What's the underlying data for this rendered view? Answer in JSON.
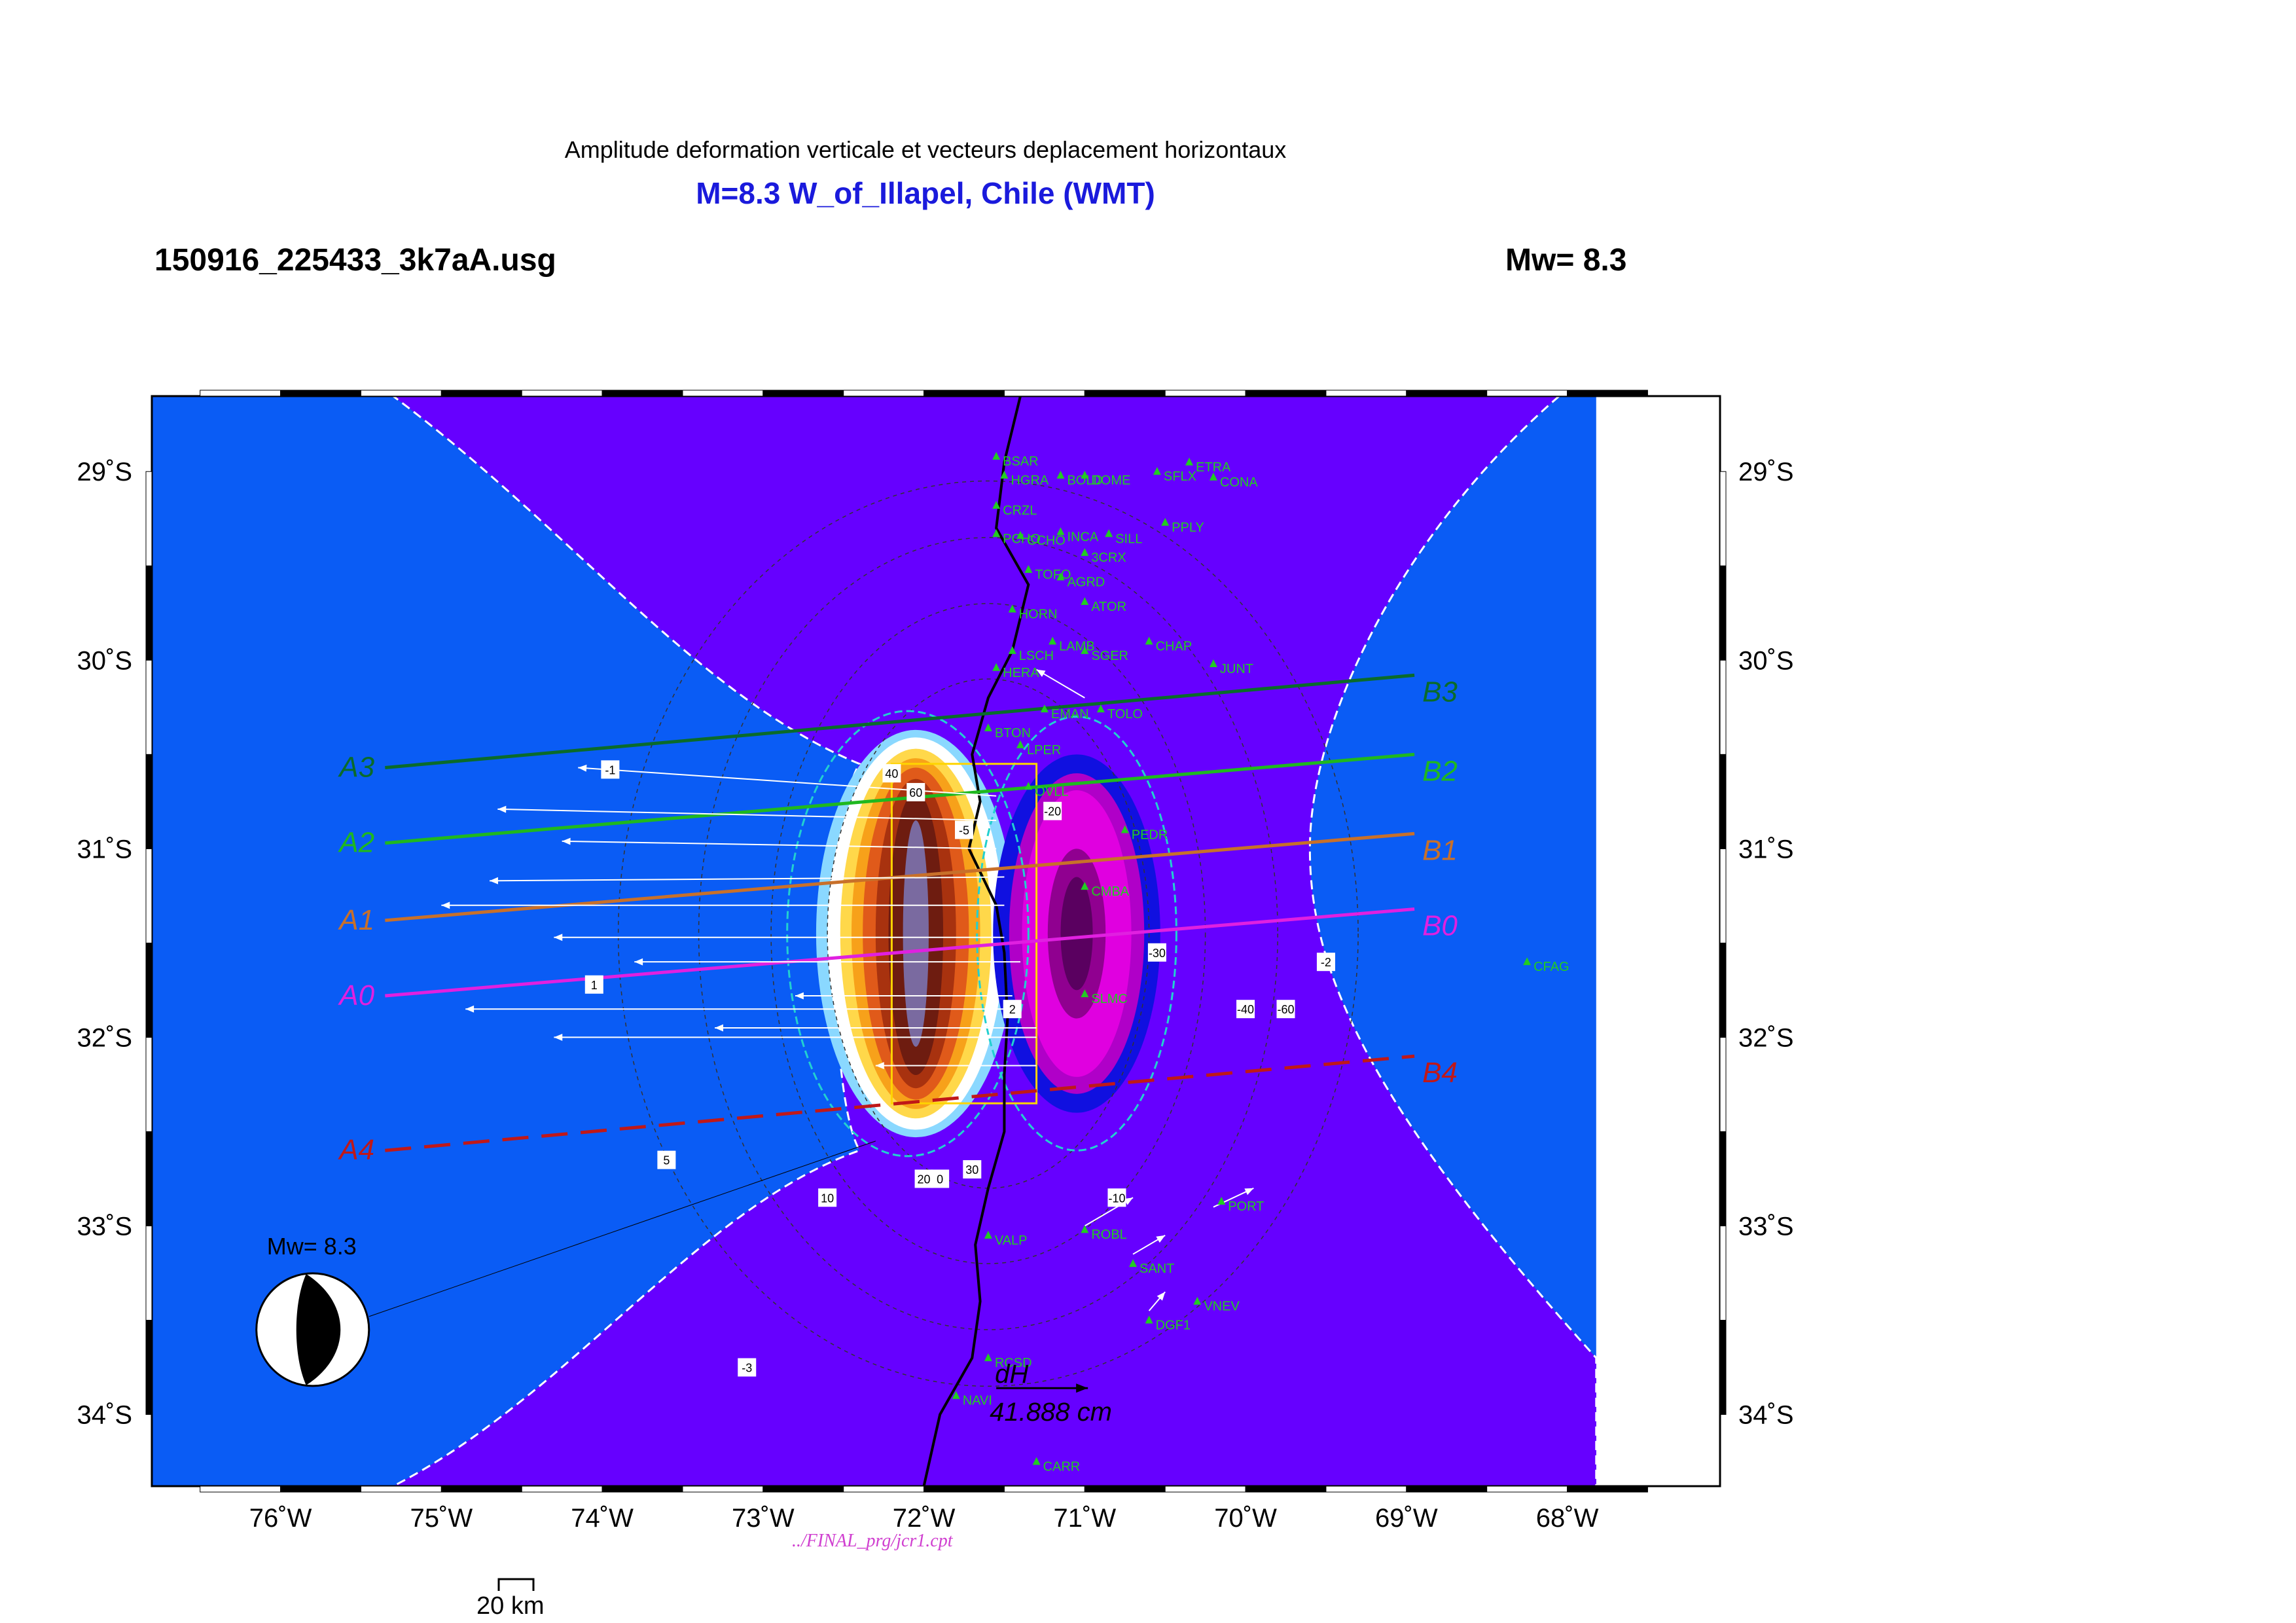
{
  "header": {
    "subtitle": "Amplitude deformation verticale et vecteurs deplacement horizontaux",
    "title": "M=8.3 W_of_Illapel, Chile (WMT)",
    "filename": "150916_225433_3k7aA.usg",
    "magnitude": "Mw= 8.3"
  },
  "axes": {
    "lon_ticks": [
      "76˚W",
      "75˚W",
      "74˚W",
      "73˚W",
      "72˚W",
      "71˚W",
      "70˚W",
      "69˚W",
      "68˚W"
    ],
    "lat_ticks": [
      "29˚S",
      "30˚S",
      "31˚S",
      "32˚S",
      "33˚S",
      "34˚S"
    ],
    "lon_range": [
      -76.8,
      -67.05
    ],
    "lat_range": [
      -34.38,
      -28.6
    ]
  },
  "colors": {
    "ocean_blue": "#0a5cf5",
    "violet": "#6600ff",
    "white": "#ffffff",
    "coast": "#000000",
    "station": "#22cc22",
    "title_blue": "#1a1adc"
  },
  "profiles": [
    {
      "start": "A3",
      "end": "B3",
      "color": "#0a6b2a",
      "from": [
        -75.35,
        -30.57
      ],
      "to": [
        -68.95,
        -30.08
      ]
    },
    {
      "start": "A2",
      "end": "B2",
      "color": "#1fb81f",
      "from": [
        -75.35,
        -30.97
      ],
      "to": [
        -68.95,
        -30.5
      ]
    },
    {
      "start": "A1",
      "end": "B1",
      "color": "#c8702a",
      "from": [
        -75.35,
        -31.38
      ],
      "to": [
        -68.95,
        -30.92
      ]
    },
    {
      "start": "A0",
      "end": "B0",
      "color": "#e020e0",
      "from": [
        -75.35,
        -31.78
      ],
      "to": [
        -68.95,
        -31.32
      ]
    },
    {
      "start": "A4",
      "end": "B4",
      "color": "#c01818",
      "from": [
        -75.35,
        -32.6
      ],
      "to": [
        -68.95,
        -32.1
      ],
      "dashed": true
    }
  ],
  "stations": [
    {
      "name": "BSAR",
      "lon": -71.55,
      "lat": -28.92
    },
    {
      "name": "HGRA",
      "lon": -71.5,
      "lat": -29.02
    },
    {
      "name": "BOLD",
      "lon": -71.15,
      "lat": -29.02
    },
    {
      "name": "DOME",
      "lon": -71.0,
      "lat": -29.02
    },
    {
      "name": "ETRA",
      "lon": -70.35,
      "lat": -28.95
    },
    {
      "name": "SFLX",
      "lon": -70.55,
      "lat": -29.0
    },
    {
      "name": "CONA",
      "lon": -70.2,
      "lat": -29.03
    },
    {
      "name": "CRZL",
      "lon": -71.55,
      "lat": -29.18
    },
    {
      "name": "PCHO",
      "lon": -71.55,
      "lat": -29.33
    },
    {
      "name": "CCHO",
      "lon": -71.4,
      "lat": -29.34
    },
    {
      "name": "INCA",
      "lon": -71.15,
      "lat": -29.32
    },
    {
      "name": "SILL",
      "lon": -70.85,
      "lat": -29.33
    },
    {
      "name": "PPLY",
      "lon": -70.5,
      "lat": -29.27
    },
    {
      "name": "3CRX",
      "lon": -71.0,
      "lat": -29.43
    },
    {
      "name": "TOFO",
      "lon": -71.35,
      "lat": -29.52
    },
    {
      "name": "AGRD",
      "lon": -71.15,
      "lat": -29.56
    },
    {
      "name": "ATOR",
      "lon": -71.0,
      "lat": -29.69
    },
    {
      "name": "HORN",
      "lon": -71.45,
      "lat": -29.73
    },
    {
      "name": "LAMB",
      "lon": -71.2,
      "lat": -29.9
    },
    {
      "name": "LSCH",
      "lon": -71.45,
      "lat": -29.95
    },
    {
      "name": "SGER",
      "lon": -71.0,
      "lat": -29.95
    },
    {
      "name": "CHAP",
      "lon": -70.6,
      "lat": -29.9
    },
    {
      "name": "JUNT",
      "lon": -70.2,
      "lat": -30.02
    },
    {
      "name": "HERA",
      "lon": -71.55,
      "lat": -30.04
    },
    {
      "name": "EMAN",
      "lon": -71.25,
      "lat": -30.26
    },
    {
      "name": "TOLO",
      "lon": -70.9,
      "lat": -30.26
    },
    {
      "name": "BTON",
      "lon": -71.6,
      "lat": -30.36
    },
    {
      "name": "LPER",
      "lon": -71.4,
      "lat": -30.45
    },
    {
      "name": "OVLL",
      "lon": -71.35,
      "lat": -30.67
    },
    {
      "name": "PEDR",
      "lon": -70.75,
      "lat": -30.9
    },
    {
      "name": "CMBA",
      "lon": -71.0,
      "lat": -31.2
    },
    {
      "name": "SLMC",
      "lon": -71.0,
      "lat": -31.77
    },
    {
      "name": "CFAG",
      "lon": -68.25,
      "lat": -31.6
    },
    {
      "name": "PORT",
      "lon": -70.15,
      "lat": -32.87
    },
    {
      "name": "ROBL",
      "lon": -71.0,
      "lat": -33.02
    },
    {
      "name": "SANT",
      "lon": -70.7,
      "lat": -33.2
    },
    {
      "name": "VALP",
      "lon": -71.6,
      "lat": -33.05
    },
    {
      "name": "VNEV",
      "lon": -70.3,
      "lat": -33.4
    },
    {
      "name": "DGF1",
      "lon": -70.6,
      "lat": -33.5
    },
    {
      "name": "RCSD",
      "lon": -71.6,
      "lat": -33.7
    },
    {
      "name": "NAVI",
      "lon": -71.8,
      "lat": -33.9
    },
    {
      "name": "CARR",
      "lon": -71.3,
      "lat": -34.25
    }
  ],
  "vectors": [
    {
      "lon": -71.55,
      "lat": -30.72,
      "dlon": -2.6,
      "dlat": 0.15
    },
    {
      "lon": -71.55,
      "lat": -30.85,
      "dlon": -3.1,
      "dlat": 0.06
    },
    {
      "lon": -71.55,
      "lat": -31.0,
      "dlon": -2.7,
      "dlat": 0.04
    },
    {
      "lon": -71.5,
      "lat": -31.15,
      "dlon": -3.2,
      "dlat": -0.02
    },
    {
      "lon": -71.5,
      "lat": -31.3,
      "dlon": -3.5,
      "dlat": 0.0
    },
    {
      "lon": -71.5,
      "lat": -31.47,
      "dlon": -2.8,
      "dlat": -0.0
    },
    {
      "lon": -71.4,
      "lat": -31.6,
      "dlon": -2.4,
      "dlat": 0.0
    },
    {
      "lon": -71.45,
      "lat": -31.78,
      "dlon": -1.35,
      "dlat": 0.0
    },
    {
      "lon": -71.4,
      "lat": -31.85,
      "dlon": -3.45,
      "dlat": 0.0
    },
    {
      "lon": -71.3,
      "lat": -31.95,
      "dlon": -2.0,
      "dlat": 0.0
    },
    {
      "lon": -71.3,
      "lat": -32.0,
      "dlon": -3.0,
      "dlat": 0.0
    },
    {
      "lon": -71.3,
      "lat": -32.15,
      "dlon": -1.0,
      "dlat": 0.0
    },
    {
      "lon": -71.0,
      "lat": -30.2,
      "dlon": -0.3,
      "dlat": 0.15
    },
    {
      "lon": -71.0,
      "lat": -33.0,
      "dlon": 0.3,
      "dlat": 0.15
    },
    {
      "lon": -70.2,
      "lat": -32.9,
      "dlon": 0.25,
      "dlat": 0.1
    },
    {
      "lon": -70.7,
      "lat": -33.15,
      "dlon": 0.2,
      "dlat": 0.1
    },
    {
      "lon": -70.6,
      "lat": -33.45,
      "dlon": 0.1,
      "dlat": 0.1
    }
  ],
  "slip_arrow_labels": {
    "name": "dH",
    "value": "41.888  cm"
  },
  "contour_labels": [
    "-1",
    "1",
    "5",
    "10",
    "20",
    "30",
    "40",
    "60",
    "-5",
    "-10",
    "-20",
    "-30",
    "-40",
    "-60",
    "-2",
    "-3",
    "0",
    "2"
  ],
  "beachball": {
    "label": "Mw= 8.3",
    "lon": -75.8,
    "lat": -33.55
  },
  "cpt_file": "../FINAL_prg/jcr1.cpt",
  "scale_bar": "20 km"
}
